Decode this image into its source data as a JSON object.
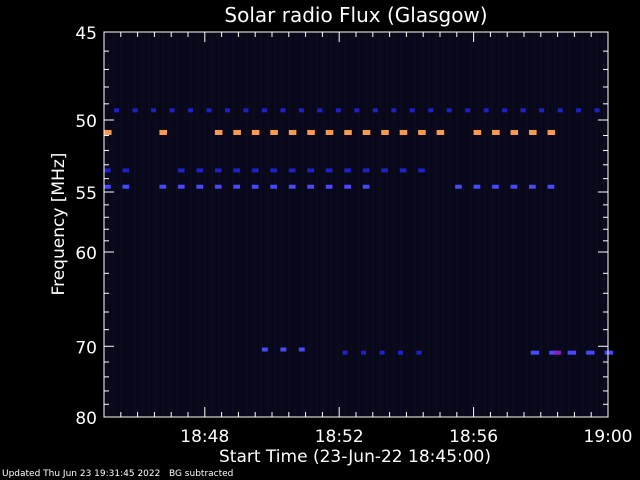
{
  "chart_data": {
    "type": "heatmap",
    "title": "Solar radio Flux (Glasgow)",
    "xlabel": "Start Time (23-Jun-22 18:45:00)",
    "ylabel": "Frequency [MHz]",
    "xlim_minutes": [
      0,
      15
    ],
    "ylim": [
      45,
      80
    ],
    "x_ticks": [
      {
        "label": "18:48",
        "minute": 3
      },
      {
        "label": "18:52",
        "minute": 7
      },
      {
        "label": "18:56",
        "minute": 11
      },
      {
        "label": "19:00",
        "minute": 15
      }
    ],
    "y_ticks": [
      45,
      50,
      55,
      60,
      70,
      80
    ],
    "colors": {
      "background": "#000000",
      "plot_bg": "#080818",
      "weak": "#2020c8",
      "medium": "#4848ff",
      "strong": "#ff9a50",
      "hot": "#8a20c0"
    },
    "bands": [
      {
        "freq": 49.4,
        "level": "weak",
        "start": 0.3,
        "end": 15,
        "dash": 0.3
      },
      {
        "freq": 50.8,
        "level": "strong",
        "start": 0,
        "end": 13.6,
        "dash": 0.45,
        "gaps": [
          [
            0.4,
            1.6
          ],
          [
            1.8,
            3.0
          ],
          [
            10.2,
            10.9
          ]
        ]
      },
      {
        "freq": 53.4,
        "level": "weak",
        "start": 0,
        "end": 9.6,
        "dash": 0.4,
        "gaps": [
          [
            0.6,
            2.0
          ]
        ]
      },
      {
        "freq": 54.6,
        "level": "medium",
        "start": 0,
        "end": 13.5,
        "dash": 0.4,
        "gaps": [
          [
            0.6,
            1.6
          ],
          [
            7.8,
            10.1
          ]
        ]
      },
      {
        "freq": 70.4,
        "level": "medium",
        "start": 4.7,
        "end": 6.1,
        "dash": 0.35
      },
      {
        "freq": 70.8,
        "level": "weak",
        "start": 7.1,
        "end": 9.5,
        "dash": 0.3
      },
      {
        "freq": 70.8,
        "level": "medium",
        "start": 12.7,
        "end": 15,
        "dash": 0.5
      },
      {
        "freq": 70.8,
        "level": "hot",
        "start": 13.4,
        "end": 13.8,
        "dash": 0.4
      }
    ]
  },
  "footer": {
    "updated": "Updated Thu Jun 23 19:31:45 2022",
    "note": "BG subtracted"
  }
}
